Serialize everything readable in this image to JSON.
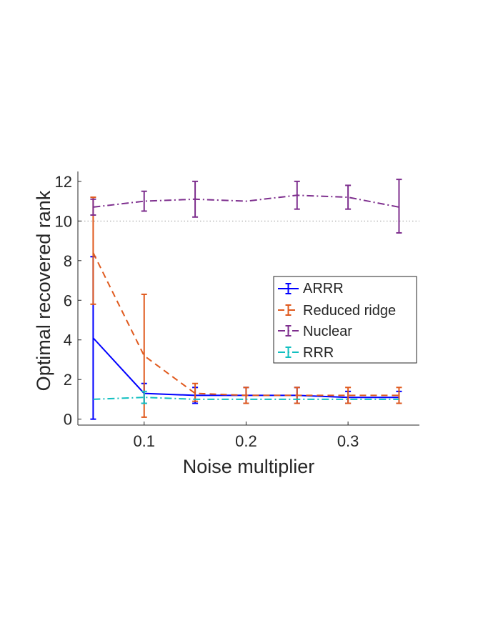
{
  "chart_data": {
    "type": "line",
    "xlabel": "Noise multiplier",
    "ylabel": "Optimal recovered rank",
    "xlim": [
      0.035,
      0.37
    ],
    "ylim": [
      -0.3,
      12.5
    ],
    "x_ticks": [
      0.1,
      0.2,
      0.3
    ],
    "x_tick_labels": [
      "0.1",
      "0.2",
      "0.3"
    ],
    "y_ticks": [
      0,
      2,
      4,
      6,
      8,
      10,
      12
    ],
    "y_tick_labels": [
      "0",
      "2",
      "4",
      "6",
      "8",
      "10",
      "12"
    ],
    "reference_line": {
      "y": 10,
      "style": "dotted"
    },
    "legend_position": "center-right",
    "x": [
      0.05,
      0.1,
      0.15,
      0.2,
      0.25,
      0.3,
      0.35
    ],
    "series": [
      {
        "name": "ARRR",
        "color": "#0000ff",
        "dash": "solid",
        "values": [
          4.1,
          1.3,
          1.2,
          1.2,
          1.2,
          1.1,
          1.1
        ],
        "err_low": [
          0.0,
          0.8,
          0.8,
          0.8,
          0.8,
          0.8,
          0.8
        ],
        "err_high": [
          8.2,
          1.8,
          1.6,
          1.6,
          1.6,
          1.4,
          1.4
        ]
      },
      {
        "name": "Reduced ridge",
        "color": "#e05a1e",
        "dash": "dashed",
        "values": [
          8.4,
          3.2,
          1.3,
          1.2,
          1.2,
          1.2,
          1.2
        ],
        "err_low": [
          5.8,
          0.1,
          0.9,
          0.8,
          0.8,
          0.8,
          0.8
        ],
        "err_high": [
          11.2,
          6.3,
          1.8,
          1.6,
          1.6,
          1.6,
          1.6
        ]
      },
      {
        "name": "Nuclear",
        "color": "#7e2f8e",
        "dash": "dashdot",
        "values": [
          10.7,
          11.0,
          11.1,
          11.0,
          11.3,
          11.2,
          10.7
        ],
        "err_low": [
          10.3,
          10.5,
          10.2,
          11.0,
          10.6,
          10.6,
          9.4
        ],
        "err_high": [
          11.1,
          11.5,
          12.0,
          11.0,
          12.0,
          11.8,
          12.1
        ]
      },
      {
        "name": "RRR",
        "color": "#11bfc0",
        "dash": "dashdot",
        "values": [
          1.0,
          1.1,
          1.0,
          1.0,
          1.0,
          1.0,
          1.0
        ],
        "err_low": [
          1.0,
          0.8,
          1.0,
          1.0,
          1.0,
          1.0,
          1.0
        ],
        "err_high": [
          1.0,
          1.4,
          1.0,
          1.0,
          1.0,
          1.0,
          1.0
        ]
      }
    ]
  }
}
